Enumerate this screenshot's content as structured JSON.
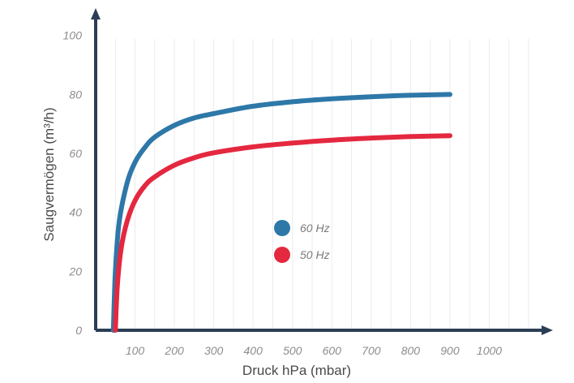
{
  "chart_data": {
    "type": "line",
    "title": "",
    "xlabel": "Druck hPa (mbar)",
    "ylabel": "Saugvermögen (m³/h)",
    "xlim": [
      0,
      1100
    ],
    "ylim": [
      0,
      100
    ],
    "x_ticks": [
      "100",
      "200",
      "300",
      "400",
      "500",
      "600",
      "700",
      "800",
      "900",
      "1000"
    ],
    "y_ticks": [
      "0",
      "20",
      "40",
      "60",
      "80",
      "100"
    ],
    "grid": "vertical",
    "legend_position": "center",
    "series": [
      {
        "name": "60 Hz",
        "color": "#2e78a8",
        "x": [
          45,
          50,
          60,
          80,
          100,
          125,
          150,
          200,
          250,
          300,
          400,
          500,
          600,
          700,
          800,
          900
        ],
        "y": [
          0,
          20,
          37,
          50,
          57,
          62,
          65.5,
          69.5,
          72,
          73.5,
          76,
          77.5,
          78.5,
          79.2,
          79.7,
          80
        ]
      },
      {
        "name": "50 Hz",
        "color": "#e4283f",
        "x": [
          50,
          55,
          65,
          80,
          100,
          125,
          150,
          200,
          250,
          300,
          400,
          500,
          600,
          700,
          800,
          900
        ],
        "y": [
          0,
          15,
          28,
          37,
          44,
          49,
          52,
          56,
          58.5,
          60.2,
          62.2,
          63.5,
          64.5,
          65.2,
          65.7,
          66
        ]
      }
    ]
  }
}
